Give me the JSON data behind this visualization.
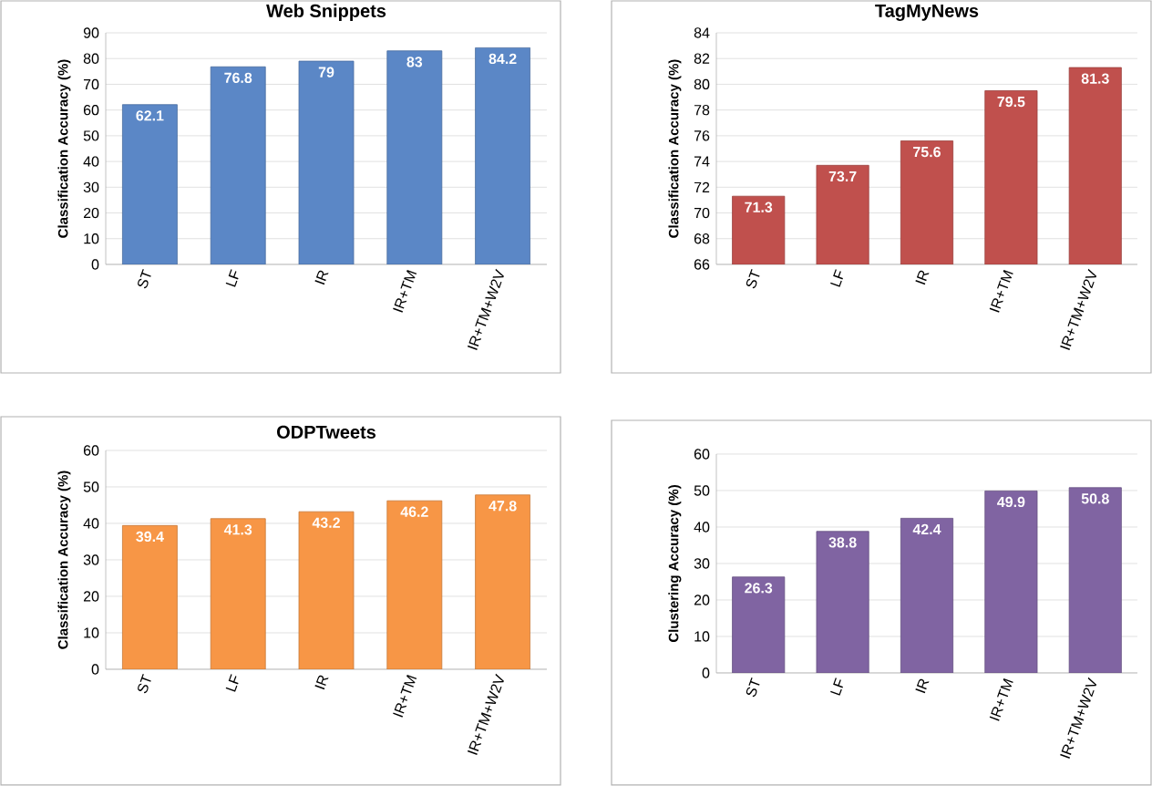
{
  "chart_data": [
    {
      "type": "bar",
      "title": "Web Snippets",
      "ylabel": "Classification Accuracy (%)",
      "categories": [
        "ST",
        "LF",
        "IR",
        "IR+TM",
        "IR+TM+W2V"
      ],
      "values": [
        62.1,
        76.8,
        79,
        83,
        84.2
      ],
      "color": "#5b87c6",
      "ylim": [
        0,
        90
      ],
      "yticks": [
        0,
        10,
        20,
        30,
        40,
        50,
        60,
        70,
        80,
        90
      ],
      "grid": "y",
      "data_labels": true
    },
    {
      "type": "bar",
      "title": "TagMyNews",
      "ylabel": "Classification Accuracy (%)",
      "categories": [
        "ST",
        "LF",
        "IR",
        "IR+TM",
        "IR+TM+W2V"
      ],
      "values": [
        71.3,
        73.7,
        75.6,
        79.5,
        81.3
      ],
      "color": "#c0504d",
      "ylim": [
        66,
        84
      ],
      "yticks": [
        66,
        68,
        70,
        72,
        74,
        76,
        78,
        80,
        82,
        84
      ],
      "grid": "y",
      "data_labels": true
    },
    {
      "type": "bar",
      "title": "ODPTweets",
      "ylabel": "Classification Accuracy (%)",
      "categories": [
        "ST",
        "LF",
        "IR",
        "IR+TM",
        "IR+TM+W2V"
      ],
      "values": [
        39.4,
        41.3,
        43.2,
        46.2,
        47.8
      ],
      "color": "#f79646",
      "ylim": [
        0,
        60
      ],
      "yticks": [
        0,
        10,
        20,
        30,
        40,
        50,
        60
      ],
      "grid": "y",
      "data_labels": true
    },
    {
      "type": "bar",
      "ylabel": "Clustering Accuracy (%)",
      "categories": [
        "ST",
        "LF",
        "IR",
        "IR+TM",
        "IR+TM+W2V"
      ],
      "values": [
        26.3,
        38.8,
        42.4,
        49.9,
        50.8
      ],
      "color": "#8064a2",
      "ylim": [
        0,
        60
      ],
      "yticks": [
        0,
        10,
        20,
        30,
        40,
        50,
        60
      ],
      "grid": "y",
      "data_labels": true
    }
  ]
}
